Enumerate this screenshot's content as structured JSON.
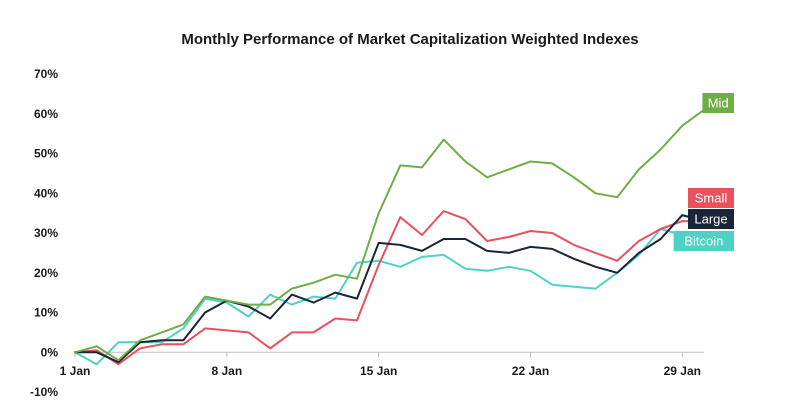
{
  "chart_data": {
    "type": "line",
    "title": "Monthly Performance of Market Capitalization Weighted Indexes",
    "xlabel": "",
    "ylabel": "",
    "x": [
      1,
      2,
      3,
      4,
      5,
      6,
      7,
      8,
      9,
      10,
      11,
      12,
      13,
      14,
      15,
      16,
      17,
      18,
      19,
      20,
      21,
      22,
      23,
      24,
      25,
      26,
      27,
      28,
      29,
      30
    ],
    "x_ticks": [
      {
        "x": 1,
        "label": "1 Jan"
      },
      {
        "x": 8,
        "label": "8 Jan"
      },
      {
        "x": 15,
        "label": "15 Jan"
      },
      {
        "x": 22,
        "label": "22 Jan"
      },
      {
        "x": 29,
        "label": "29 Jan"
      }
    ],
    "xlim": [
      1,
      30
    ],
    "ylim": [
      -10,
      70
    ],
    "y_ticks": [
      {
        "v": 70,
        "label": "70%"
      },
      {
        "v": 60,
        "label": "60%"
      },
      {
        "v": 50,
        "label": "50%"
      },
      {
        "v": 40,
        "label": "40%"
      },
      {
        "v": 30,
        "label": "30%"
      },
      {
        "v": 20,
        "label": "20%"
      },
      {
        "v": 10,
        "label": "10%"
      },
      {
        "v": 0,
        "label": "0%"
      },
      {
        "v": -10,
        "label": "-10%"
      }
    ],
    "grid": false,
    "series": [
      {
        "name": "Mid",
        "color": "#70ad47",
        "values": [
          0,
          1.5,
          -2,
          3,
          5,
          7,
          14,
          13,
          12,
          12,
          16,
          17.5,
          19.5,
          18.5,
          35,
          47,
          46.5,
          53.5,
          48,
          44,
          46,
          48,
          47.5,
          44,
          40,
          39,
          46,
          51,
          57,
          61
        ]
      },
      {
        "name": "Small",
        "color": "#e8515e",
        "values": [
          0,
          0.5,
          -3,
          1,
          2,
          2,
          6,
          5.5,
          5,
          1,
          5,
          5,
          8.5,
          8,
          22,
          34,
          29.5,
          35.5,
          33.5,
          28,
          29,
          30.5,
          30,
          27,
          25,
          23,
          28,
          31,
          33,
          33
        ]
      },
      {
        "name": "Large",
        "color": "#1b2538",
        "values": [
          0,
          0,
          -2.5,
          2.5,
          3,
          3,
          10,
          13,
          11.5,
          8.5,
          14.5,
          12.5,
          15,
          13.5,
          27.5,
          27,
          25.5,
          28.5,
          28.5,
          25.5,
          25,
          26.5,
          26,
          23.5,
          21.5,
          20,
          25,
          28.5,
          34.5,
          33
        ]
      },
      {
        "name": "Bitcoin",
        "color": "#4fd1c5",
        "values": [
          0,
          -3,
          2.5,
          2.5,
          2.5,
          6,
          13.5,
          12.5,
          9,
          14.5,
          12,
          14,
          13.5,
          22.5,
          23,
          21.5,
          24,
          24.5,
          21,
          20.5,
          21.5,
          20.5,
          17,
          16.5,
          16,
          20,
          24.5,
          31,
          29.5,
          30
        ]
      }
    ]
  }
}
